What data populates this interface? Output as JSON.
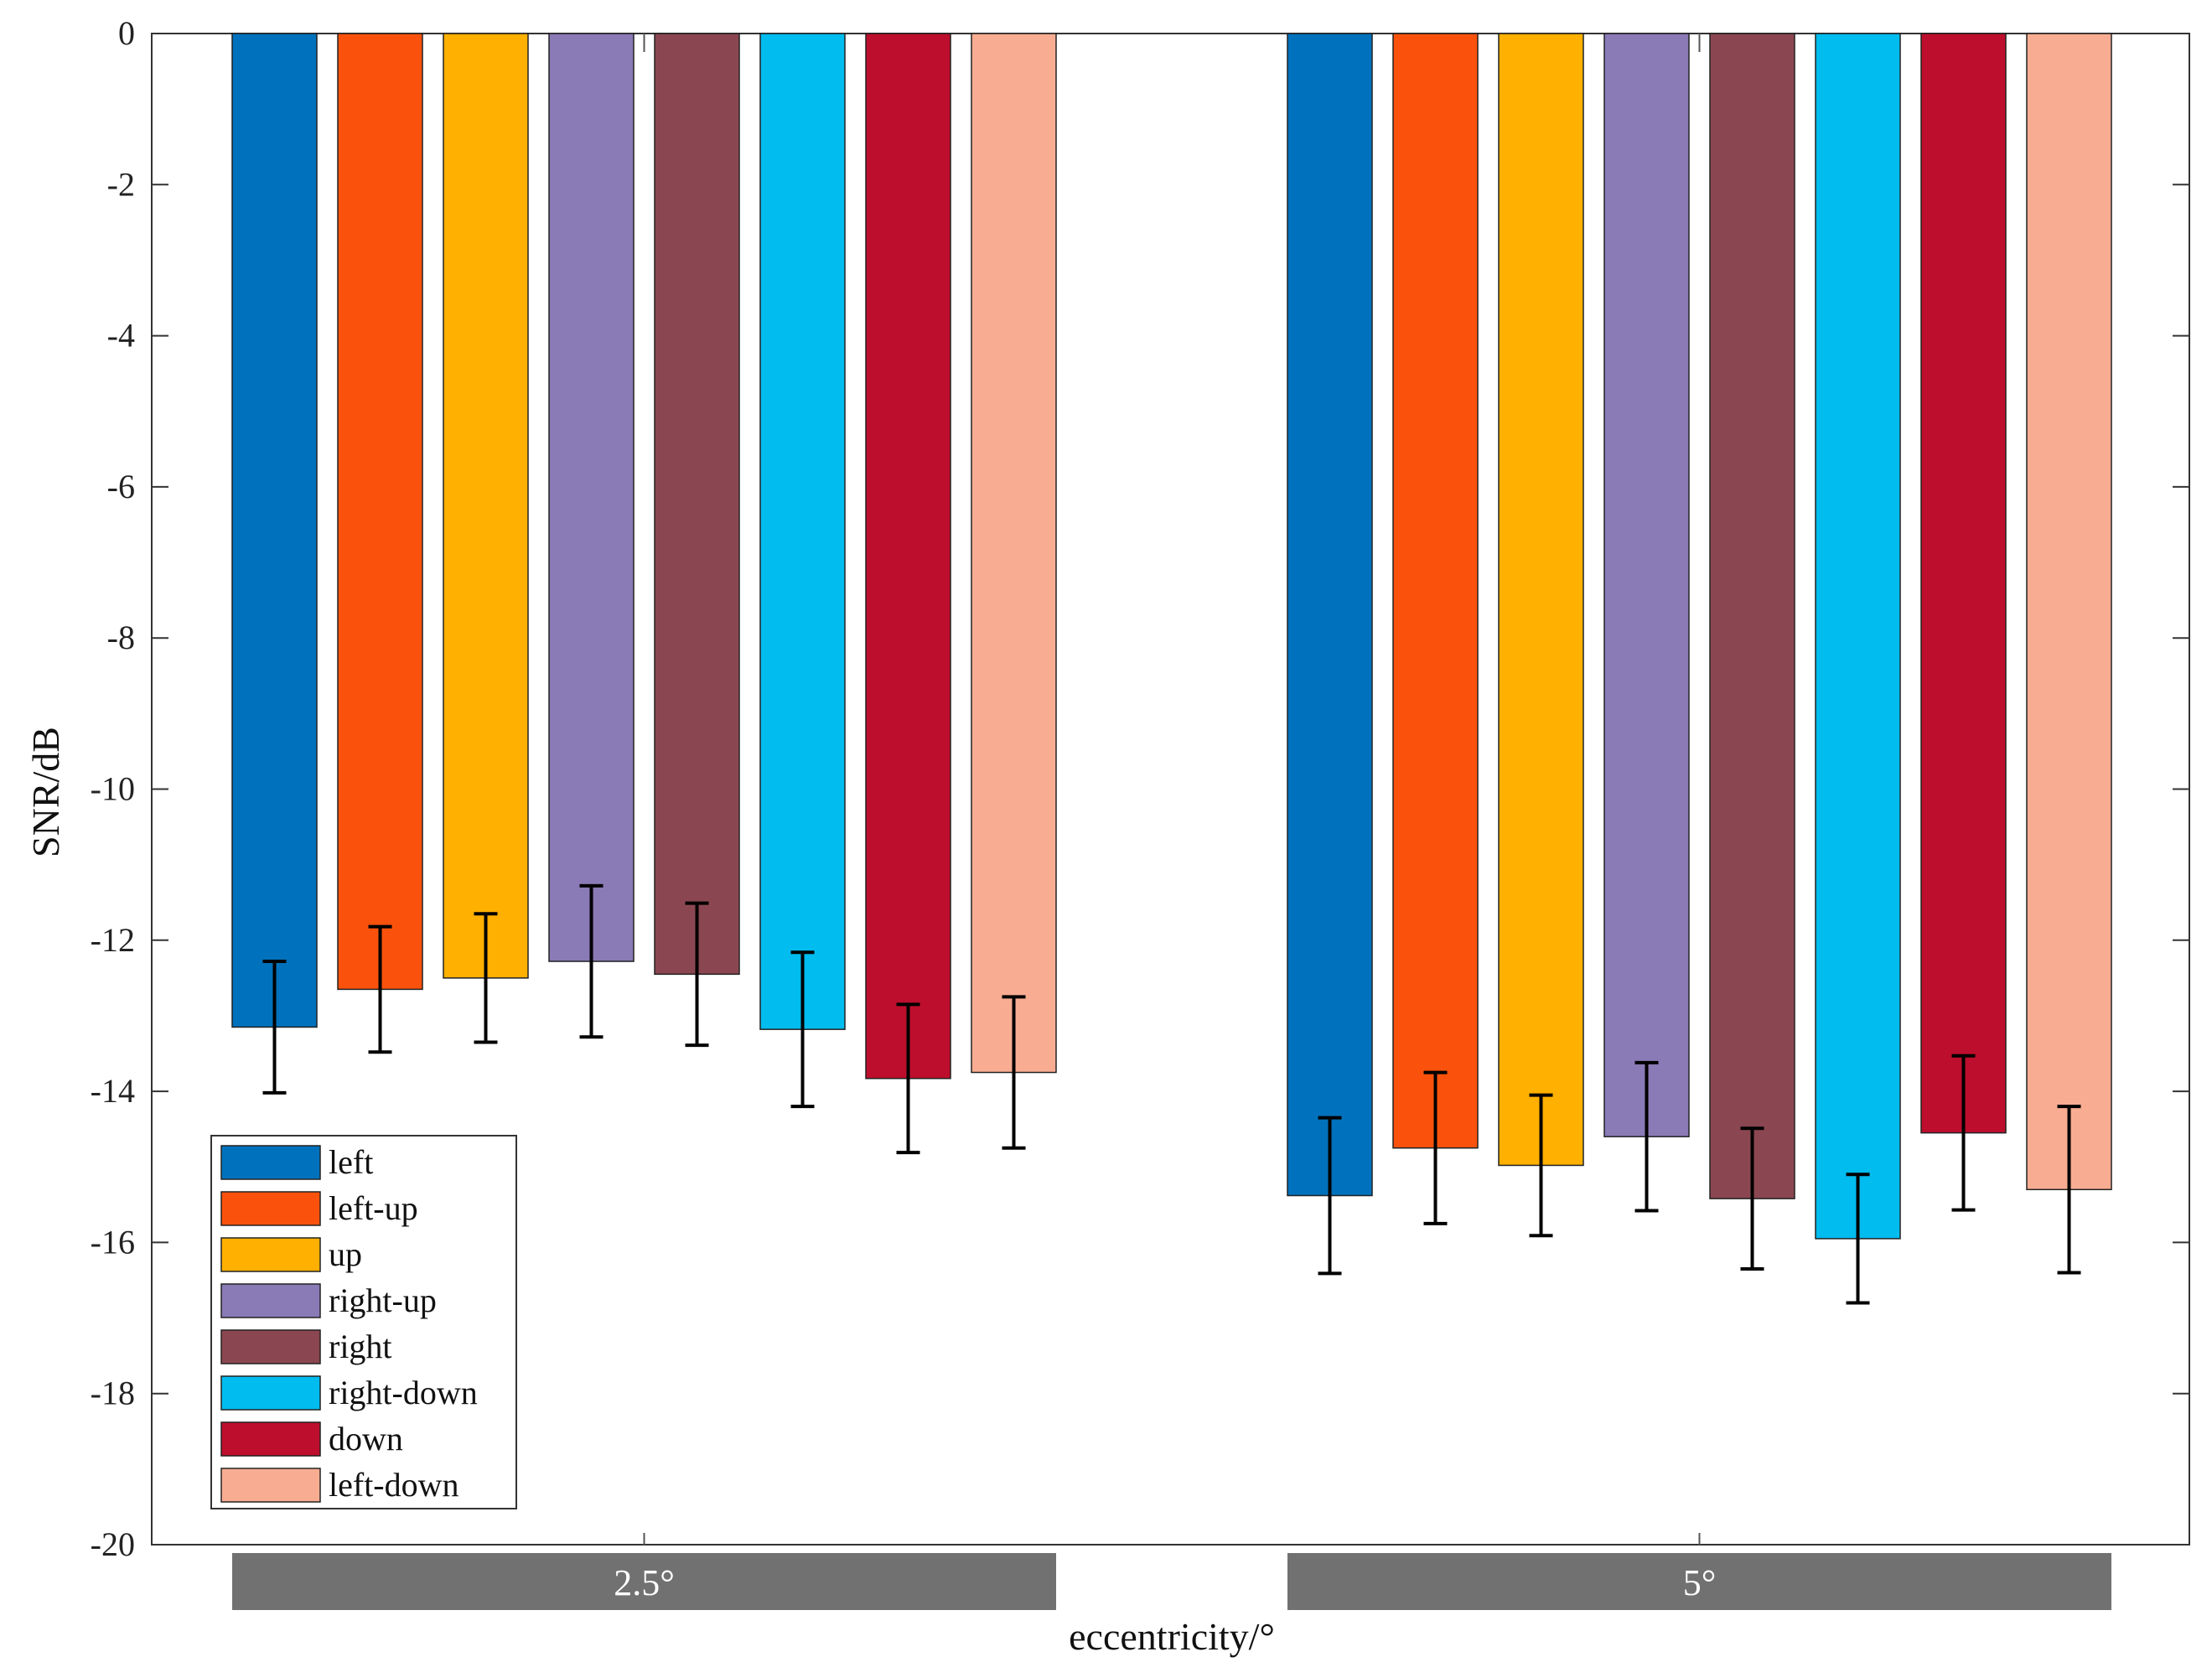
{
  "chart_data": {
    "type": "bar",
    "title": "",
    "xlabel": "eccentricity/°",
    "ylabel": "SNR/dB",
    "ylim": [
      -20,
      0
    ],
    "yticks": [
      0,
      -2,
      -4,
      -6,
      -8,
      -10,
      -12,
      -14,
      -16,
      -18,
      -20
    ],
    "categories": [
      "2.5°",
      "5°"
    ],
    "legend_position": "bottom-left",
    "grid": false,
    "series": [
      {
        "name": "left",
        "color": "#0072BD",
        "values": [
          -13.15,
          -15.38
        ],
        "errors": [
          0.87,
          1.03
        ]
      },
      {
        "name": "left-up",
        "color": "#FA520C",
        "values": [
          -12.65,
          -14.75
        ],
        "errors": [
          0.83,
          1.0
        ]
      },
      {
        "name": "up",
        "color": "#FFB000",
        "values": [
          -12.5,
          -14.98
        ],
        "errors": [
          0.85,
          0.93
        ]
      },
      {
        "name": "right-up",
        "color": "#8A7AB6",
        "values": [
          -12.28,
          -14.6
        ],
        "errors": [
          1.0,
          0.98
        ]
      },
      {
        "name": "right",
        "color": "#8B4751",
        "values": [
          -12.45,
          -15.42
        ],
        "errors": [
          0.94,
          0.93
        ]
      },
      {
        "name": "right-down",
        "color": "#00BCEF",
        "values": [
          -13.18,
          -15.95
        ],
        "errors": [
          1.02,
          0.85
        ]
      },
      {
        "name": "down",
        "color": "#BE0E2D",
        "values": [
          -13.83,
          -14.55
        ],
        "errors": [
          0.98,
          1.02
        ]
      },
      {
        "name": "left-down",
        "color": "#F8AD92",
        "values": [
          -13.75,
          -15.3
        ],
        "errors": [
          1.0,
          1.1
        ]
      }
    ]
  }
}
